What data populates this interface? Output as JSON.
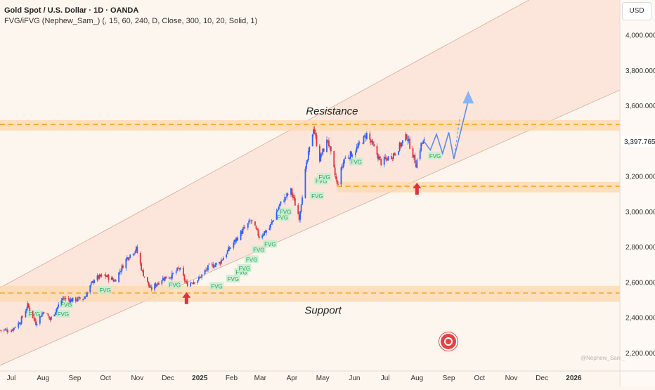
{
  "legend": {
    "title": "Gold Spot / U.S. Dollar · 1D · OANDA",
    "indicator": "FVG/iFVG (Nephew_Sam_) (, 15, 60, 240, D, Close, 300, 10, 20, Solid, 1)"
  },
  "currency": "USD",
  "watermark": "@Nephew_Sam_",
  "colors": {
    "background": "#fdf6ee",
    "channel_fill": "#fbe0d4",
    "zone_fill": "#fcd9b0",
    "zone_dash": "#f5a623",
    "up_candle": "#2962ff",
    "down_candle": "#e0313e",
    "fvg_box": "#c8ecd0",
    "fvg_text": "#26a65b",
    "arrow_red": "#e0313e",
    "projection": "#5b8def"
  },
  "chart_data": {
    "type": "candlestick",
    "y_axis": {
      "range": [
        2130,
        4200
      ],
      "ticks": [
        2200,
        2400,
        2600,
        2800,
        3000,
        3200,
        3400,
        3600,
        3800,
        4000
      ],
      "tick_labels": [
        "2,200.000",
        "2,400.000",
        "2,600.000",
        "2,800.000",
        "3,000.000",
        "3,200.000",
        "3,400.000",
        "3,600.000",
        "3,800.000",
        "4,000.000"
      ],
      "last_price": "3,397.765"
    },
    "x_axis": {
      "range": [
        "2024-06-20",
        "2026-02-15"
      ],
      "ticks": [
        {
          "label": "Jul",
          "date": "2024-07-01"
        },
        {
          "label": "Aug",
          "date": "2024-08-01"
        },
        {
          "label": "Sep",
          "date": "2024-09-01"
        },
        {
          "label": "Oct",
          "date": "2024-10-01"
        },
        {
          "label": "Nov",
          "date": "2024-11-01"
        },
        {
          "label": "Dec",
          "date": "2024-12-01"
        },
        {
          "label": "2025",
          "date": "2025-01-01",
          "bold": true
        },
        {
          "label": "Feb",
          "date": "2025-02-01"
        },
        {
          "label": "Mar",
          "date": "2025-03-01"
        },
        {
          "label": "Apr",
          "date": "2025-04-01"
        },
        {
          "label": "May",
          "date": "2025-05-01"
        },
        {
          "label": "Jun",
          "date": "2025-06-01"
        },
        {
          "label": "Jul",
          "date": "2025-07-01"
        },
        {
          "label": "Aug",
          "date": "2025-08-01"
        },
        {
          "label": "Sep",
          "date": "2025-09-01"
        },
        {
          "label": "Oct",
          "date": "2025-10-01"
        },
        {
          "label": "Nov",
          "date": "2025-11-01"
        },
        {
          "label": "Dec",
          "date": "2025-12-01"
        },
        {
          "label": "2026",
          "date": "2026-01-01",
          "bold": true
        }
      ]
    },
    "price_path": [
      [
        "2024-06-20",
        2330
      ],
      [
        "2024-07-01",
        2330
      ],
      [
        "2024-07-10",
        2380
      ],
      [
        "2024-07-17",
        2470
      ],
      [
        "2024-07-25",
        2370
      ],
      [
        "2024-08-02",
        2440
      ],
      [
        "2024-08-08",
        2390
      ],
      [
        "2024-08-20",
        2510
      ],
      [
        "2024-08-30",
        2500
      ],
      [
        "2024-09-10",
        2510
      ],
      [
        "2024-09-20",
        2620
      ],
      [
        "2024-09-30",
        2640
      ],
      [
        "2024-10-10",
        2610
      ],
      [
        "2024-10-22",
        2740
      ],
      [
        "2024-10-31",
        2790
      ],
      [
        "2024-11-06",
        2660
      ],
      [
        "2024-11-14",
        2560
      ],
      [
        "2024-11-25",
        2620
      ],
      [
        "2024-12-05",
        2640
      ],
      [
        "2024-12-12",
        2680
      ],
      [
        "2024-12-19",
        2590
      ],
      [
        "2024-12-31",
        2620
      ],
      [
        "2025-01-10",
        2690
      ],
      [
        "2025-01-20",
        2710
      ],
      [
        "2025-01-31",
        2800
      ],
      [
        "2025-02-10",
        2880
      ],
      [
        "2025-02-20",
        2950
      ],
      [
        "2025-02-28",
        2860
      ],
      [
        "2025-03-10",
        2910
      ],
      [
        "2025-03-20",
        3040
      ],
      [
        "2025-03-31",
        3120
      ],
      [
        "2025-04-08",
        2970
      ],
      [
        "2025-04-14",
        3230
      ],
      [
        "2025-04-22",
        3480
      ],
      [
        "2025-04-28",
        3300
      ],
      [
        "2025-05-06",
        3410
      ],
      [
        "2025-05-15",
        3150
      ],
      [
        "2025-05-22",
        3300
      ],
      [
        "2025-06-01",
        3340
      ],
      [
        "2025-06-13",
        3440
      ],
      [
        "2025-06-27",
        3280
      ],
      [
        "2025-07-10",
        3330
      ],
      [
        "2025-07-22",
        3430
      ],
      [
        "2025-07-31",
        3270
      ],
      [
        "2025-08-05",
        3380
      ],
      [
        "2025-08-08",
        3398
      ]
    ],
    "resistance_zone": {
      "label": "Resistance",
      "y": [
        3460,
        3520
      ],
      "level": 3495,
      "x_start": "2024-06-20"
    },
    "support_zone": {
      "label": "Support",
      "y": [
        2490,
        2580
      ],
      "level": 2540,
      "x_start": "2024-06-20"
    },
    "demand_zone": {
      "y": [
        3110,
        3170
      ],
      "level": 3145,
      "x_start": "2025-05-15"
    },
    "channel": {
      "upper": [
        [
          "2024-06-20",
          2570
        ],
        [
          "2026-02-15",
          4480
        ]
      ],
      "lower": [
        [
          "2024-06-20",
          2130
        ],
        [
          "2026-02-15",
          3690
        ]
      ]
    },
    "fvg_labels": [
      {
        "text": "FVG",
        "x": "2024-07-18",
        "y": 2420
      },
      {
        "text": "FVG",
        "x": "2024-08-15",
        "y": 2420
      },
      {
        "text": "FVG",
        "x": "2024-08-18",
        "y": 2475
      },
      {
        "text": "FVG",
        "x": "2024-09-25",
        "y": 2555
      },
      {
        "text": "FVG",
        "x": "2024-12-02",
        "y": 2585
      },
      {
        "text": "FVG",
        "x": "2025-01-12",
        "y": 2577
      },
      {
        "text": "FVG",
        "x": "2025-01-28",
        "y": 2620
      },
      {
        "text": "FVG",
        "x": "2025-02-05",
        "y": 2658
      },
      {
        "text": "FVG",
        "x": "2025-02-08",
        "y": 2680
      },
      {
        "text": "FVG",
        "x": "2025-02-15",
        "y": 2730
      },
      {
        "text": "FVG",
        "x": "2025-02-22",
        "y": 2785
      },
      {
        "text": "FVG",
        "x": "2025-03-05",
        "y": 2817
      },
      {
        "text": "FVG",
        "x": "2025-03-17",
        "y": 2967
      },
      {
        "text": "FVG",
        "x": "2025-03-20",
        "y": 3000
      },
      {
        "text": "FVG",
        "x": "2025-04-20",
        "y": 3090
      },
      {
        "text": "FVG",
        "x": "2025-04-24",
        "y": 3175
      },
      {
        "text": "FVG",
        "x": "2025-04-27",
        "y": 3197
      },
      {
        "text": "FVG",
        "x": "2025-05-28",
        "y": 3282
      },
      {
        "text": "FVG",
        "x": "2025-08-13",
        "y": 3317
      }
    ],
    "arrows_up": [
      {
        "x": "2024-12-19",
        "y": 2545
      },
      {
        "x": "2025-08-01",
        "y": 3165
      }
    ],
    "projection": [
      [
        "2025-08-08",
        3398
      ],
      [
        "2025-08-14",
        3350
      ],
      [
        "2025-08-20",
        3440
      ],
      [
        "2025-08-26",
        3330
      ],
      [
        "2025-09-01",
        3450
      ],
      [
        "2025-09-06",
        3300
      ],
      [
        "2025-09-12",
        3440
      ],
      [
        "2025-09-20",
        3630
      ]
    ],
    "projection_dashed": [
      [
        "2025-09-06",
        3300
      ],
      [
        "2025-09-12",
        3540
      ]
    ],
    "grid": false,
    "legend": "top-left"
  }
}
